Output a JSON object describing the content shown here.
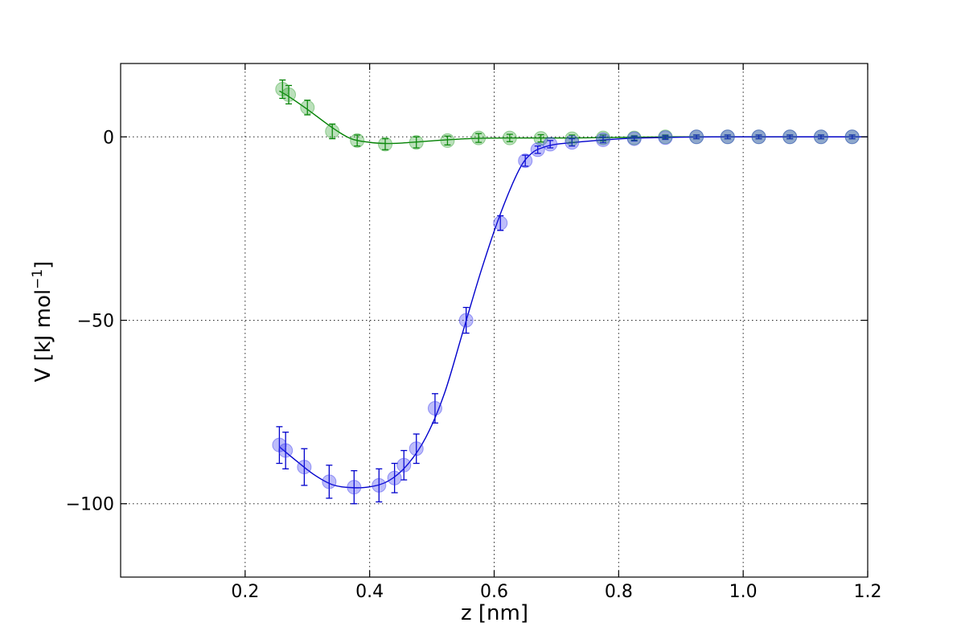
{
  "chart_data": {
    "type": "scatter",
    "xlabel": "z [nm]",
    "ylabel_main": "V [kJ mol",
    "ylabel_sup": "−1",
    "ylabel_end": "]",
    "xlim": [
      0.0,
      1.2
    ],
    "ylim": [
      -120,
      20
    ],
    "x_ticks": [
      0.2,
      0.4,
      0.6,
      0.8,
      1.0,
      1.2
    ],
    "x_tick_labels": [
      "0.2",
      "0.4",
      "0.6",
      "0.8",
      "1.0",
      "1.2"
    ],
    "y_ticks": [
      -100,
      -50,
      0
    ],
    "y_tick_labels": [
      "−100",
      "−50",
      "0"
    ],
    "grid": true,
    "series": [
      {
        "color": "#008000",
        "marker_color": "#2ca02c",
        "points": [
          {
            "x": 0.26,
            "y": 13.0,
            "err": 2.5
          },
          {
            "x": 0.27,
            "y": 11.5,
            "err": 2.5
          },
          {
            "x": 0.3,
            "y": 8.0,
            "err": 2.0
          },
          {
            "x": 0.34,
            "y": 1.5,
            "err": 2.0
          },
          {
            "x": 0.38,
            "y": -1.0,
            "err": 1.5
          },
          {
            "x": 0.425,
            "y": -2.0,
            "err": 1.5
          },
          {
            "x": 0.475,
            "y": -1.5,
            "err": 1.5
          },
          {
            "x": 0.525,
            "y": -1.0,
            "err": 1.2
          },
          {
            "x": 0.575,
            "y": -0.3,
            "err": 1.2
          },
          {
            "x": 0.625,
            "y": -0.3,
            "err": 1.0
          },
          {
            "x": 0.675,
            "y": -0.4,
            "err": 1.0
          },
          {
            "x": 0.725,
            "y": -0.5,
            "err": 1.0
          },
          {
            "x": 0.775,
            "y": -0.3,
            "err": 0.8
          },
          {
            "x": 0.825,
            "y": -0.3,
            "err": 0.6
          },
          {
            "x": 0.875,
            "y": 0.0,
            "err": 0.5
          },
          {
            "x": 0.925,
            "y": 0.0,
            "err": 0.5
          },
          {
            "x": 0.975,
            "y": 0.0,
            "err": 0.5
          },
          {
            "x": 1.025,
            "y": 0.0,
            "err": 0.5
          },
          {
            "x": 1.075,
            "y": 0.0,
            "err": 0.5
          },
          {
            "x": 1.125,
            "y": 0.0,
            "err": 0.5
          },
          {
            "x": 1.175,
            "y": 0.0,
            "err": 0.5
          }
        ],
        "curve_x": [
          0.255,
          0.27,
          0.3,
          0.34,
          0.37,
          0.4,
          0.425,
          0.45,
          0.475,
          0.525,
          0.575,
          0.625,
          0.675,
          0.725,
          0.775,
          0.825,
          0.875,
          0.925,
          1.2
        ],
        "curve_y": [
          12.5,
          11.0,
          7.5,
          2.5,
          -0.5,
          -1.5,
          -1.8,
          -1.7,
          -1.4,
          -0.8,
          -0.4,
          -0.3,
          -0.3,
          -0.3,
          -0.2,
          -0.1,
          0.0,
          0.0,
          0.0
        ]
      },
      {
        "color": "#0000cc",
        "marker_color": "#3333ee",
        "points": [
          {
            "x": 0.255,
            "y": -84.0,
            "err": 5.0
          },
          {
            "x": 0.265,
            "y": -85.5,
            "err": 5.0
          },
          {
            "x": 0.295,
            "y": -90.0,
            "err": 5.0
          },
          {
            "x": 0.335,
            "y": -94.0,
            "err": 4.5
          },
          {
            "x": 0.375,
            "y": -95.5,
            "err": 4.5
          },
          {
            "x": 0.415,
            "y": -95.0,
            "err": 4.5
          },
          {
            "x": 0.44,
            "y": -93.0,
            "err": 4.0
          },
          {
            "x": 0.455,
            "y": -89.5,
            "err": 4.0
          },
          {
            "x": 0.475,
            "y": -85.0,
            "err": 4.0
          },
          {
            "x": 0.505,
            "y": -74.0,
            "err": 4.0
          },
          {
            "x": 0.555,
            "y": -50.0,
            "err": 3.5
          },
          {
            "x": 0.61,
            "y": -23.5,
            "err": 2.0
          },
          {
            "x": 0.65,
            "y": -6.5,
            "err": 1.5
          },
          {
            "x": 0.67,
            "y": -3.5,
            "err": 1.0
          },
          {
            "x": 0.69,
            "y": -2.0,
            "err": 1.0
          },
          {
            "x": 0.725,
            "y": -1.5,
            "err": 1.0
          },
          {
            "x": 0.775,
            "y": -0.8,
            "err": 0.8
          },
          {
            "x": 0.825,
            "y": -0.5,
            "err": 0.6
          },
          {
            "x": 0.875,
            "y": -0.2,
            "err": 0.5
          },
          {
            "x": 0.925,
            "y": 0.0,
            "err": 0.5
          },
          {
            "x": 0.975,
            "y": 0.0,
            "err": 0.5
          },
          {
            "x": 1.025,
            "y": 0.0,
            "err": 0.5
          },
          {
            "x": 1.075,
            "y": 0.0,
            "err": 0.5
          },
          {
            "x": 1.125,
            "y": 0.0,
            "err": 0.5
          },
          {
            "x": 1.175,
            "y": 0.0,
            "err": 0.5
          }
        ],
        "curve_x": [
          0.255,
          0.28,
          0.31,
          0.34,
          0.37,
          0.4,
          0.43,
          0.46,
          0.49,
          0.52,
          0.55,
          0.58,
          0.61,
          0.64,
          0.66,
          0.68,
          0.7,
          0.73,
          0.77,
          0.82,
          0.87,
          0.95,
          1.2
        ],
        "curve_y": [
          -84.5,
          -88.0,
          -92.0,
          -94.8,
          -95.6,
          -95.4,
          -93.8,
          -89.5,
          -82.0,
          -70.0,
          -53.0,
          -36.0,
          -21.0,
          -9.0,
          -4.5,
          -2.8,
          -2.0,
          -1.5,
          -0.9,
          -0.4,
          -0.2,
          0.0,
          0.0
        ]
      }
    ]
  }
}
